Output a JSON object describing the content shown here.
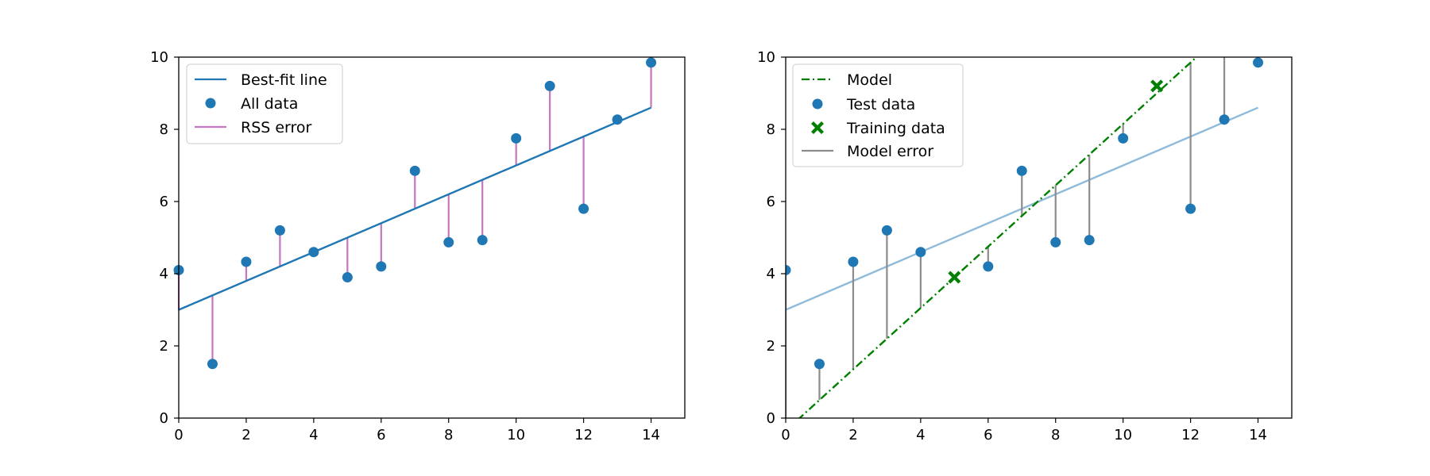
{
  "chart_data": [
    {
      "type": "scatter",
      "title": "",
      "xlabel": "",
      "ylabel": "",
      "xlim": [
        0,
        15
      ],
      "ylim": [
        0,
        10
      ],
      "xticks": [
        "0",
        "2",
        "4",
        "6",
        "8",
        "10",
        "12",
        "14"
      ],
      "yticks": [
        "0",
        "2",
        "4",
        "6",
        "8",
        "10"
      ],
      "legend_position": "top-left",
      "legend": [
        "Best-fit line",
        "All data",
        "RSS error"
      ],
      "colors": {
        "line": "#1f77b4",
        "points": "#1f77b4",
        "error": "#c377c0"
      },
      "best_fit": {
        "intercept": 3.0,
        "slope": 0.4,
        "x_range": [
          0,
          14
        ]
      },
      "points": {
        "x": [
          0,
          1,
          2,
          3,
          4,
          5,
          6,
          7,
          8,
          9,
          10,
          11,
          12,
          13,
          14
        ],
        "y": [
          4.1,
          1.5,
          4.33,
          5.2,
          4.6,
          3.9,
          4.2,
          6.85,
          4.87,
          4.93,
          7.75,
          9.2,
          5.8,
          8.27,
          9.85
        ]
      }
    },
    {
      "type": "scatter",
      "title": "",
      "xlabel": "",
      "ylabel": "",
      "xlim": [
        0,
        15
      ],
      "ylim": [
        0,
        10
      ],
      "xticks": [
        "0",
        "2",
        "4",
        "6",
        "8",
        "10",
        "12",
        "14"
      ],
      "yticks": [
        "0",
        "2",
        "4",
        "6",
        "8",
        "10"
      ],
      "legend_position": "top-left",
      "legend": [
        "Model",
        "Test data",
        "Training data",
        "Model error"
      ],
      "colors": {
        "model": "#008000",
        "points": "#1f77b4",
        "training": "#008000",
        "error": "#8c8c8c",
        "best_fit": "#8fbad9"
      },
      "best_fit": {
        "intercept": 3.0,
        "slope": 0.4,
        "x_range": [
          0,
          14
        ]
      },
      "model": {
        "intercept": -0.35,
        "slope": 0.85
      },
      "test_points": {
        "x": [
          0,
          1,
          2,
          3,
          4,
          6,
          7,
          8,
          9,
          10,
          12,
          13,
          14
        ],
        "y": [
          4.1,
          1.5,
          4.33,
          5.2,
          4.6,
          4.2,
          6.85,
          4.87,
          4.93,
          7.75,
          5.8,
          8.27,
          9.85
        ]
      },
      "training_points": {
        "x": [
          5,
          11
        ],
        "y": [
          3.9,
          9.2
        ]
      }
    }
  ]
}
